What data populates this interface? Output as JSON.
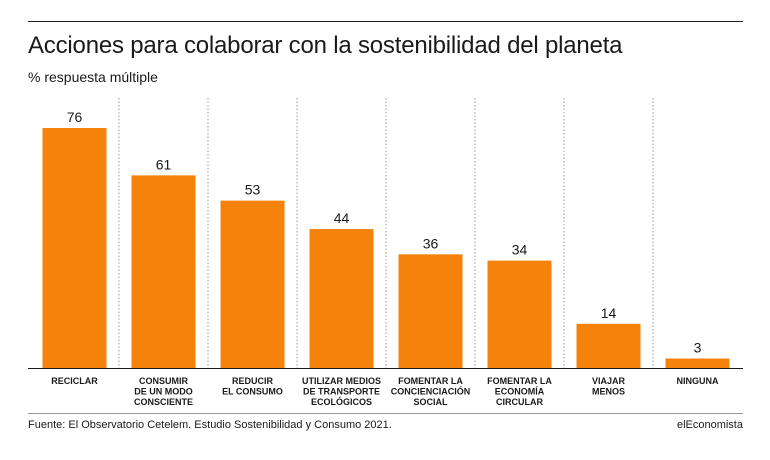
{
  "title": "Acciones para colaborar con la sostenibilidad del planeta",
  "subtitle": "% respuesta múltiple",
  "footer": {
    "source": "Fuente: El Observatorio Cetelem. Estudio Sostenibilidad y Consumo 2021.",
    "brand": "elEconomista"
  },
  "colors": {
    "bar": "#F5820B",
    "axis": "#1a1a1a",
    "divider": "#9a9a9a"
  },
  "chart_data": {
    "type": "bar",
    "categories": [
      [
        "RECICLAR"
      ],
      [
        "CONSUMIR",
        "DE UN MODO",
        "CONSCIENTE"
      ],
      [
        "REDUCIR",
        "EL CONSUMO"
      ],
      [
        "UTILIZAR MEDIOS",
        "DE TRANSPORTE",
        "ECOLÓGICOS"
      ],
      [
        "FOMENTAR LA",
        "CONCIENCIACIÓN",
        "SOCIAL"
      ],
      [
        "FOMENTAR LA",
        "ECONOMÍA",
        "CIRCULAR"
      ],
      [
        "VIAJAR",
        "MENOS"
      ],
      [
        "NINGUNA"
      ]
    ],
    "values": [
      76,
      61,
      53,
      44,
      36,
      34,
      14,
      3
    ],
    "ylim": [
      0,
      76
    ],
    "grid": false
  }
}
